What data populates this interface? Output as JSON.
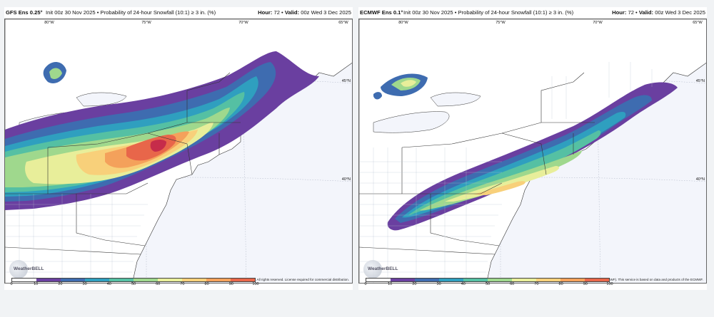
{
  "colors": {
    "scale": [
      "#ffffff",
      "#6a3fa0",
      "#3e6cb0",
      "#2f9fbf",
      "#55c0a3",
      "#9fd88d",
      "#e8ee9a",
      "#f8d07a",
      "#f4a15b",
      "#e8664a",
      "#c62c4a",
      "#8a0f47"
    ],
    "water": "#f3f5fb",
    "border": "#333333"
  },
  "panels": [
    {
      "model": "GFS Ens 0.25°",
      "description": "Init 00z 30 Nov 2025 • Probability of 24-hour Snowfall (10:1) ≥ 3 in. (%)",
      "hour_label": "Hour:",
      "hour": "72",
      "valid_label": "Valid:",
      "valid": "00z Wed 3 Dec 2025",
      "copyright": "© 2025 WeatherBELL Analytics, LLC. All rights reserved. License required for commercial distribution.",
      "logo_text": "WeatherBELL",
      "lon_labels": [
        "80°W",
        "75°W",
        "70°W",
        "65°W"
      ],
      "lat_labels": [
        "45°N",
        "40°N"
      ]
    },
    {
      "model": "ECMWF Ens 0.1°",
      "description": "Init 00z 30 Nov 2025 • Probability of 24-hour Snowfall (10:1) ≥ 3 in. (%)",
      "hour_label": "Hour:",
      "hour": "72",
      "valid_label": "Valid:",
      "valid": "00z Wed 3 Dec 2025",
      "copyright": "© 2025 European Centre for Medium-Range Weather Forecasts (ECMWF). This service is based on data and products of the ECMWF.",
      "logo_text": "WeatherBELL",
      "lon_labels": [
        "80°W",
        "75°W",
        "70°W",
        "65°W"
      ],
      "lat_labels": [
        "45°N",
        "40°N"
      ]
    }
  ],
  "colorbar_ticks": [
    "0",
    "10",
    "20",
    "30",
    "40",
    "50",
    "60",
    "70",
    "80",
    "90",
    "100"
  ]
}
